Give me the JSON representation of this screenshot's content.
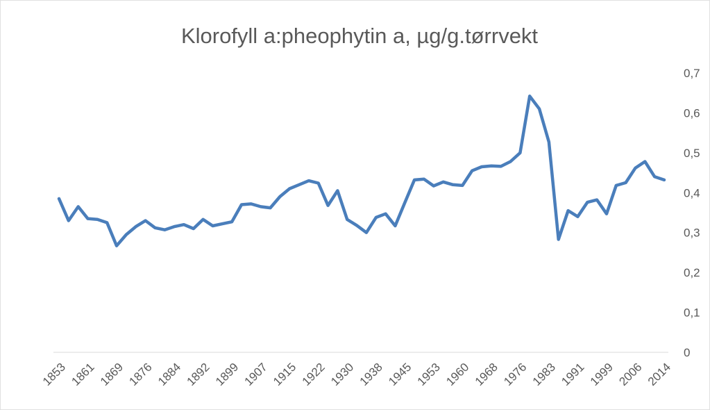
{
  "chart_data": {
    "type": "line",
    "title": "Klorofyll a:pheophytin a, µg/g.tørrvekt",
    "categories": [
      "1853",
      null,
      null,
      "1861",
      null,
      null,
      "1869",
      null,
      null,
      "1876",
      null,
      null,
      "1884",
      null,
      null,
      "1892",
      null,
      null,
      "1899",
      null,
      null,
      "1907",
      null,
      null,
      "1915",
      null,
      null,
      "1922",
      null,
      null,
      "1930",
      null,
      null,
      "1938",
      null,
      null,
      "1945",
      null,
      null,
      "1953",
      null,
      null,
      "1960",
      null,
      null,
      "1968",
      null,
      null,
      "1976",
      null,
      null,
      "1983",
      null,
      null,
      "1991",
      null,
      null,
      "1999",
      null,
      null,
      "2006",
      null,
      null,
      "2014"
    ],
    "series": [
      {
        "color": "#4a7ebb",
        "values": [
          0.385,
          0.33,
          0.365,
          0.335,
          0.333,
          0.325,
          0.267,
          0.295,
          0.315,
          0.33,
          0.312,
          0.307,
          0.315,
          0.32,
          0.31,
          0.333,
          0.317,
          0.322,
          0.327,
          0.37,
          0.372,
          0.365,
          0.362,
          0.39,
          0.41,
          0.42,
          0.43,
          0.424,
          0.368,
          0.405,
          0.333,
          0.318,
          0.3,
          0.338,
          0.347,
          0.317,
          0.375,
          0.432,
          0.434,
          0.417,
          0.427,
          0.42,
          0.418,
          0.455,
          0.465,
          0.467,
          0.466,
          0.478,
          0.5,
          0.642,
          0.61,
          0.527,
          0.283,
          0.355,
          0.34,
          0.376,
          0.382,
          0.347,
          0.418,
          0.425,
          0.462,
          0.478,
          0.44,
          0.432
        ]
      }
    ],
    "ylim": [
      0,
      0.7
    ],
    "yticks": [
      0,
      {
        "value": 0.1,
        "label": "0,1"
      },
      {
        "value": 0.2,
        "label": "0,2"
      },
      {
        "value": 0.3,
        "label": "0,3"
      },
      {
        "value": 0.4,
        "label": "0,4"
      },
      {
        "value": 0.5,
        "label": "0,5"
      },
      {
        "value": 0.6,
        "label": "0,6"
      },
      {
        "value": 0.7,
        "label": "0,7"
      }
    ]
  }
}
